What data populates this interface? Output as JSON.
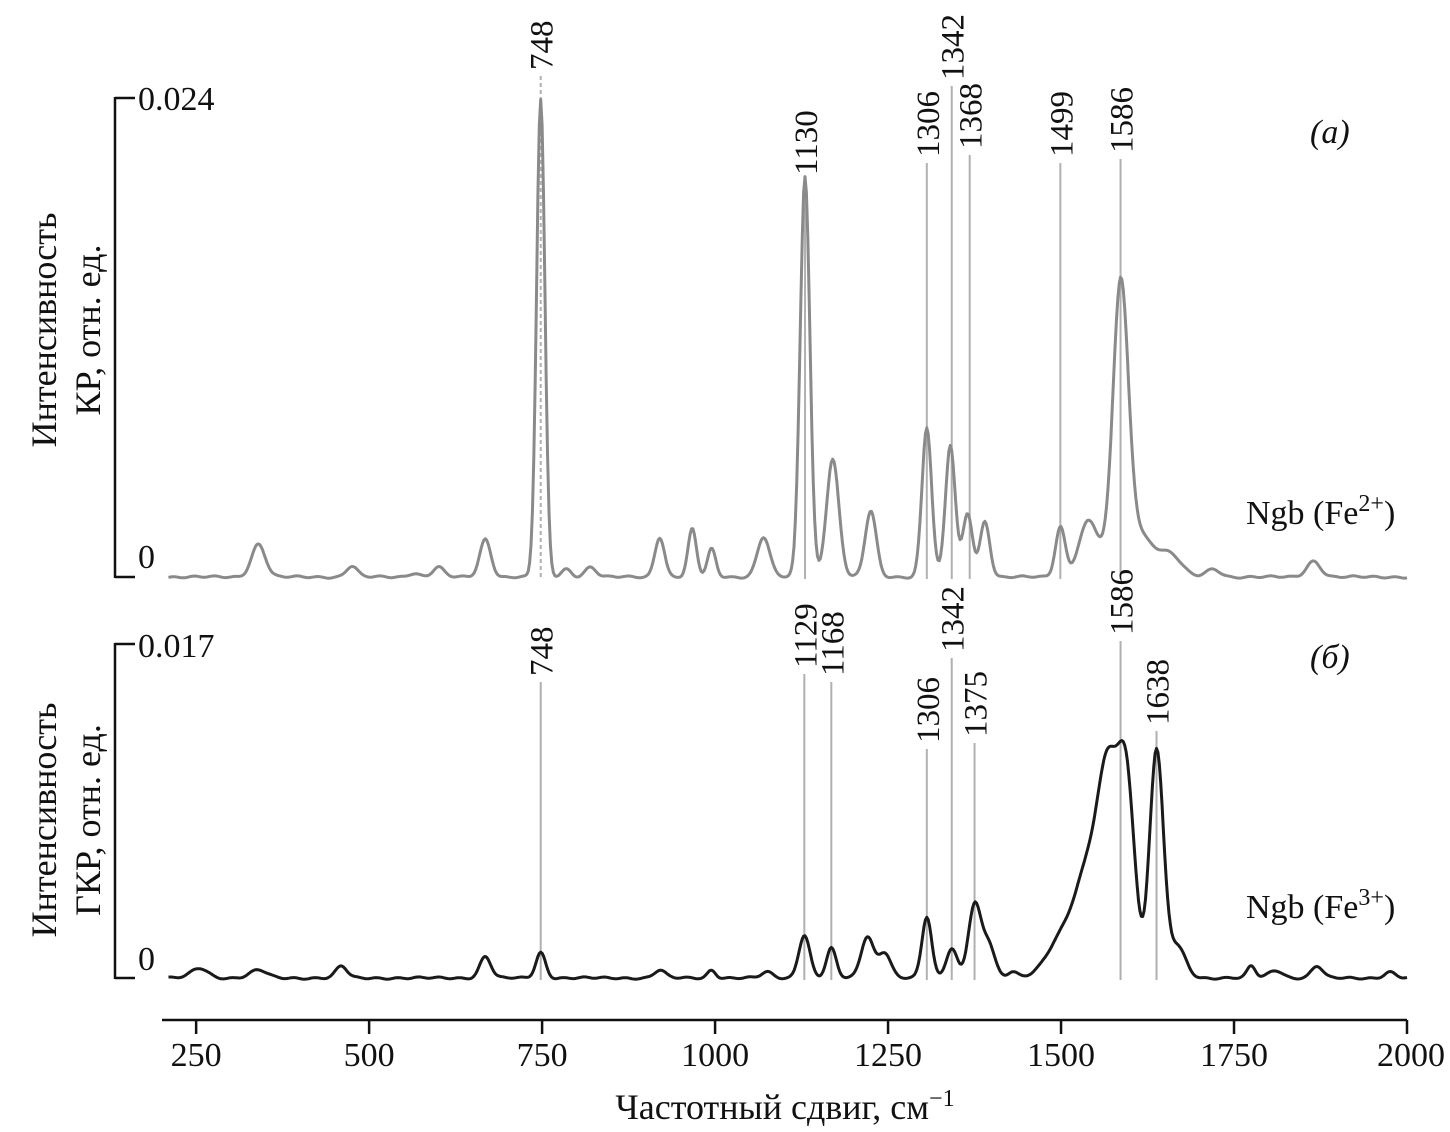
{
  "chart_data": [
    {
      "type": "line",
      "panel_label": "(а)",
      "sample_label": "Ngb (Fe",
      "sample_charge": "2+",
      "sample_close": ")",
      "ylabel_line1": "Интенсивность",
      "ylabel_line2": "КР, отн. ед.",
      "y_top_label": "0.024",
      "y_zero_label": "0",
      "ylim": [
        0,
        0.024
      ],
      "color": "#8a8a8a",
      "peaks": [
        {
          "x": 748,
          "label": "748"
        },
        {
          "x": 1130,
          "label": "1130"
        },
        {
          "x": 1306,
          "label": "1306"
        },
        {
          "x": 1342,
          "label": "1342"
        },
        {
          "x": 1368,
          "label": "1368"
        },
        {
          "x": 1499,
          "label": "1499"
        },
        {
          "x": 1586,
          "label": "1586"
        }
      ],
      "series": [
        {
          "components": [
            [
              340,
              0.00165,
              10
            ],
            [
              475,
              0.00055,
              8
            ],
            [
              565,
              0.0002,
              8
            ],
            [
              600,
              0.0005,
              8
            ],
            [
              668,
              0.0019,
              8
            ],
            [
              748,
              0.0239,
              6
            ],
            [
              785,
              0.0004,
              7
            ],
            [
              820,
              0.0005,
              8
            ],
            [
              920,
              0.002,
              7
            ],
            [
              967,
              0.0024,
              6
            ],
            [
              995,
              0.0014,
              6
            ],
            [
              1070,
              0.002,
              9
            ],
            [
              1130,
              0.0201,
              7
            ],
            [
              1170,
              0.0059,
              9
            ],
            [
              1225,
              0.0033,
              8
            ],
            [
              1306,
              0.0075,
              7
            ],
            [
              1340,
              0.0066,
              7
            ],
            [
              1365,
              0.0032,
              7
            ],
            [
              1390,
              0.0028,
              7
            ],
            [
              1499,
              0.0025,
              7
            ],
            [
              1540,
              0.0028,
              14
            ],
            [
              1586,
              0.0136,
              11
            ],
            [
              1610,
              0.0022,
              25
            ],
            [
              1660,
              0.0009,
              15
            ],
            [
              1720,
              0.0004,
              10
            ],
            [
              1865,
              0.0008,
              10
            ]
          ]
        }
      ]
    },
    {
      "type": "line",
      "panel_label": "(б)",
      "sample_label": "Ngb (Fe",
      "sample_charge": "3+",
      "sample_close": ")",
      "ylabel_line1": "Интенсивность",
      "ylabel_line2": "ГКР, отн. ед.",
      "y_top_label": "0.017",
      "y_zero_label": "0",
      "ylim": [
        0,
        0.017
      ],
      "color": "#1a1a1a",
      "peaks": [
        {
          "x": 748,
          "label": "748"
        },
        {
          "x": 1129,
          "label": "1129"
        },
        {
          "x": 1168,
          "label": "1168"
        },
        {
          "x": 1306,
          "label": "1306"
        },
        {
          "x": 1342,
          "label": "1342"
        },
        {
          "x": 1375,
          "label": "1375"
        },
        {
          "x": 1586,
          "label": "1586"
        },
        {
          "x": 1638,
          "label": "1638"
        }
      ],
      "series": [
        {
          "components": [
            [
              255,
              0.0005,
              12
            ],
            [
              340,
              0.0004,
              12
            ],
            [
              460,
              0.0006,
              8
            ],
            [
              668,
              0.0011,
              8
            ],
            [
              748,
              0.0013,
              7
            ],
            [
              920,
              0.0004,
              8
            ],
            [
              995,
              0.0004,
              6
            ],
            [
              1075,
              0.0003,
              8
            ],
            [
              1129,
              0.0022,
              8
            ],
            [
              1168,
              0.0015,
              7
            ],
            [
              1220,
              0.0021,
              9
            ],
            [
              1245,
              0.0013,
              9
            ],
            [
              1306,
              0.0031,
              7
            ],
            [
              1342,
              0.0015,
              8
            ],
            [
              1375,
              0.0037,
              9
            ],
            [
              1395,
              0.0017,
              9
            ],
            [
              1430,
              0.0003,
              7
            ],
            [
              1500,
              0.0018,
              22
            ],
            [
              1545,
              0.0058,
              22
            ],
            [
              1570,
              0.0077,
              14
            ],
            [
              1595,
              0.0093,
              12
            ],
            [
              1638,
              0.0116,
              10
            ],
            [
              1668,
              0.0016,
              12
            ],
            [
              1775,
              0.0006,
              6
            ],
            [
              1810,
              0.0004,
              10
            ],
            [
              1870,
              0.0006,
              8
            ],
            [
              1975,
              0.0003,
              8
            ]
          ]
        }
      ]
    }
  ],
  "xaxis": {
    "ticks": [
      250,
      500,
      750,
      1000,
      1250,
      1500,
      1750,
      2000
    ],
    "xlim": [
      205,
      2000
    ],
    "label": "Частотный сдвиг, см",
    "label_sup": "−1"
  }
}
